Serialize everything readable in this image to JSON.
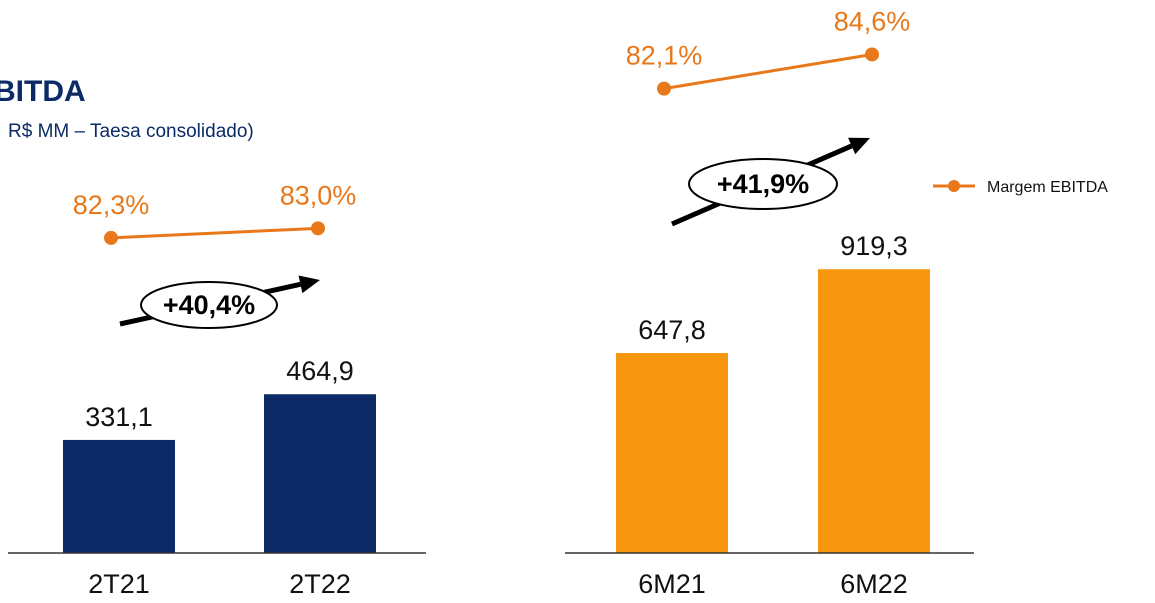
{
  "header": {
    "title": "BITDA",
    "subtitle": "R$ MM – Taesa consolidado)"
  },
  "legend": {
    "label": "Margem EBITDA",
    "color": "#e8781a"
  },
  "chart_data": [
    {
      "type": "bar",
      "categories": [
        "2T21",
        "2T22"
      ],
      "values": [
        331.1,
        464.9
      ],
      "value_labels": [
        "331,1",
        "464,9"
      ],
      "bar_color": "#0b2a66",
      "margin_series": {
        "name": "Margem EBITDA",
        "values": [
          82.3,
          83.0
        ],
        "labels": [
          "82,3%",
          "83,0%"
        ],
        "color": "#e8781a"
      },
      "growth_label": "+40,4%",
      "ylim": [
        0,
        1000
      ]
    },
    {
      "type": "bar",
      "categories": [
        "6M21",
        "6M22"
      ],
      "values": [
        647.8,
        919.3
      ],
      "value_labels": [
        "647,8",
        "919,3"
      ],
      "bar_color": "#f7960f",
      "margin_series": {
        "name": "Margem EBITDA",
        "values": [
          82.1,
          84.6
        ],
        "labels": [
          "82,1%",
          "84,6%"
        ],
        "color": "#e8781a"
      },
      "growth_label": "+41,9%",
      "ylim": [
        0,
        1000
      ]
    }
  ]
}
